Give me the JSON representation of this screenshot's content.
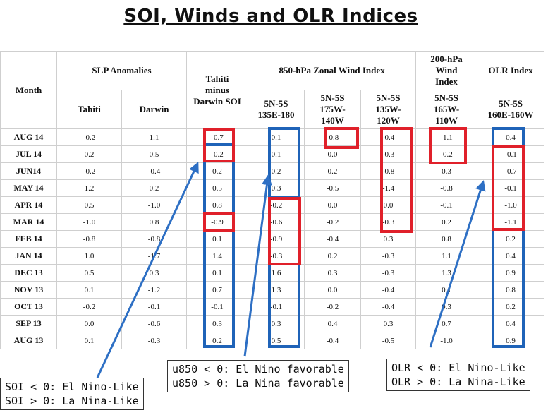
{
  "title": "SOI, Winds and OLR Indices",
  "headers": {
    "month": "Month",
    "slp": "SLP Anomalies",
    "tahiti": "Tahiti",
    "darwin": "Darwin",
    "soi_line1": "Tahiti",
    "soi_line2": "minus",
    "soi_line3": "Darwin SOI",
    "zonal": "850-hPa Zonal Wind Index",
    "z1_l1": "5N-5S",
    "z1_l2": "135E-180",
    "z2_l1": "5N-5S",
    "z2_l2": "175W-",
    "z2_l3": "140W",
    "z3_l1": "5N-5S",
    "z3_l2": "135W-",
    "z3_l3": "120W",
    "w200_l1": "200-hPa",
    "w200_l2": "Wind",
    "w200_l3": "Index",
    "w200s_l1": "5N-5S",
    "w200s_l2": "165W-",
    "w200s_l3": "110W",
    "olr": "OLR Index",
    "olrs_l1": "5N-5S",
    "olrs_l2": "160E-160W"
  },
  "rows": [
    [
      "AUG 14",
      "-0.2",
      "1.1",
      "-0.7",
      "0.1",
      "-0.8",
      "-0.4",
      "-1.1",
      "0.4"
    ],
    [
      "JUL 14",
      "0.2",
      "0.5",
      "-0.2",
      "0.1",
      "0.0",
      "-0.3",
      "-0.2",
      "-0.1"
    ],
    [
      "JUN14",
      "-0.2",
      "-0.4",
      "0.2",
      "0.2",
      "0.2",
      "-0.8",
      "0.3",
      "-0.7"
    ],
    [
      "MAY 14",
      "1.2",
      "0.2",
      "0.5",
      "0.3",
      "-0.5",
      "-1.4",
      "-0.8",
      "-0.1"
    ],
    [
      "APR 14",
      "0.5",
      "-1.0",
      "0.8",
      "-0.2",
      "0.0",
      "0.0",
      "-0.1",
      "-1.0"
    ],
    [
      "MAR 14",
      "-1.0",
      "0.8",
      "-0.9",
      "-0.6",
      "-0.2",
      "-0.3",
      "0.2",
      "-1.1"
    ],
    [
      "FEB 14",
      "-0.8",
      "-0.8",
      "0.1",
      "-0.9",
      "-0.4",
      "0.3",
      "0.8",
      "0.2"
    ],
    [
      "JAN 14",
      "1.0",
      "-1.7",
      "1.4",
      "-0.3",
      "0.2",
      "-0.3",
      "1.1",
      "0.4"
    ],
    [
      "DEC 13",
      "0.5",
      "0.3",
      "0.1",
      "1.6",
      "0.3",
      "-0.3",
      "1.3",
      "0.9"
    ],
    [
      "NOV 13",
      "0.1",
      "-1.2",
      "0.7",
      "1.3",
      "0.0",
      "-0.4",
      "0.1",
      "0.8"
    ],
    [
      "OCT 13",
      "-0.2",
      "-0.1",
      "-0.1",
      "-0.1",
      "-0.2",
      "-0.4",
      "0.3",
      "0.2"
    ],
    [
      "SEP 13",
      "0.0",
      "-0.6",
      "0.3",
      "0.3",
      "0.4",
      "0.3",
      "0.7",
      "0.4"
    ],
    [
      "AUG 13",
      "0.1",
      "-0.3",
      "0.2",
      "0.5",
      "-0.4",
      "-0.5",
      "-1.0",
      "0.9"
    ]
  ],
  "notes": {
    "soi_line1": "SOI < 0: El Nino-Like",
    "soi_line2": "SOI > 0: La Nina-Like",
    "u850_line1": "u850 < 0: El Nino favorable",
    "u850_line2": "u850 > 0: La Nina favorable",
    "olr_line1": "OLR < 0: El Nino-Like",
    "olr_line2": "OLR > 0: La Nina-Like"
  },
  "colors": {
    "blue": "#1f63b8",
    "red": "#e0202a",
    "arrow": "#2d6fc4"
  }
}
